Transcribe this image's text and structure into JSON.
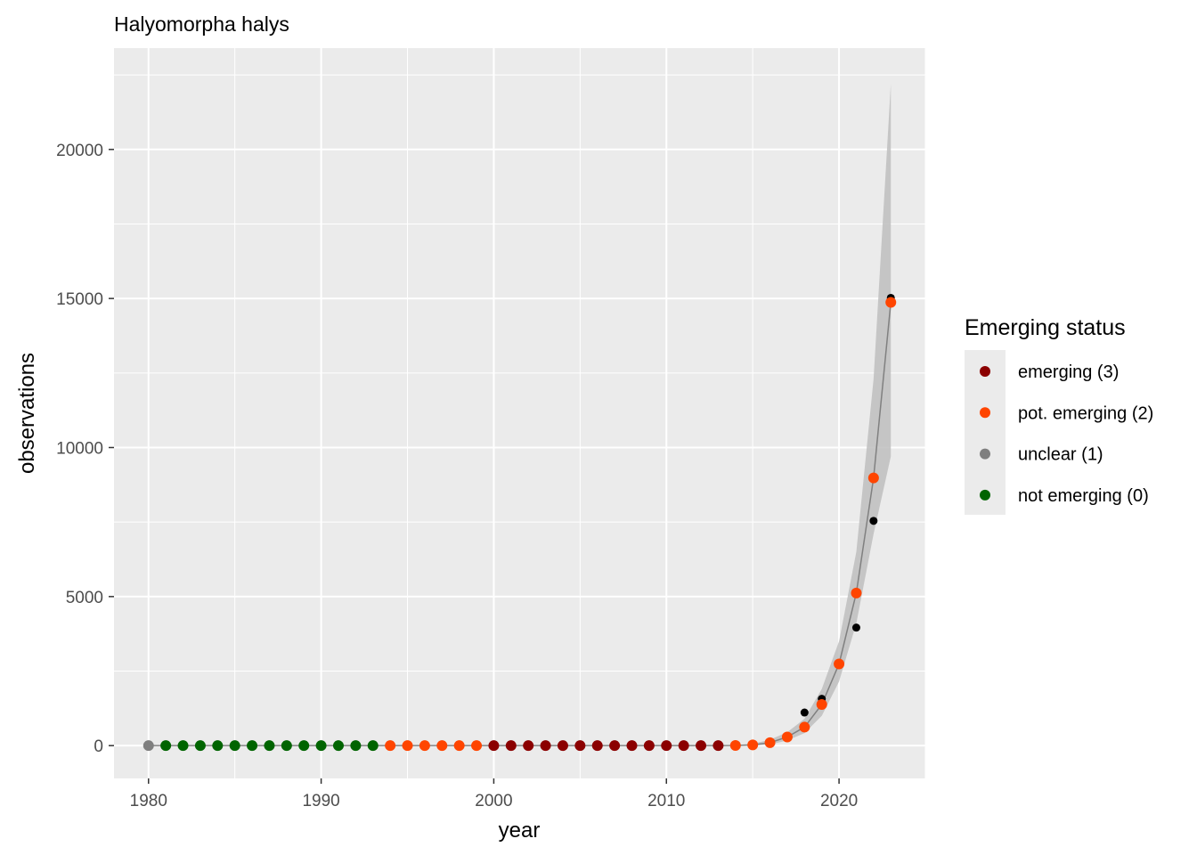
{
  "chart_data": {
    "type": "scatter",
    "title": "Halyomorpha halys",
    "xlabel": "year",
    "ylabel": "observations",
    "xlim": [
      1978,
      2025
    ],
    "ylim": [
      -1100,
      23400
    ],
    "x_ticks": [
      1980,
      1990,
      2000,
      2010,
      2020
    ],
    "y_ticks": [
      0,
      5000,
      10000,
      15000,
      20000
    ],
    "grid": true,
    "legend": {
      "title": "Emerging status",
      "position": "right",
      "entries": [
        {
          "label": "emerging (3)",
          "color": "#8b0000"
        },
        {
          "label": "pot. emerging (2)",
          "color": "#ff4500"
        },
        {
          "label": "unclear (1)",
          "color": "#7f7f7f"
        },
        {
          "label": "not emerging (0)",
          "color": "#006400"
        }
      ]
    },
    "observed": {
      "color": "#000000",
      "points": [
        [
          2018,
          1110
        ],
        [
          2019,
          1570
        ],
        [
          2021,
          3960
        ],
        [
          2022,
          7540
        ],
        [
          2023,
          15020
        ]
      ]
    },
    "fitted": {
      "line_color": "#808080",
      "band_color": "#bebebe",
      "points": [
        [
          1980,
          0,
          0,
          0,
          "unclear (1)"
        ],
        [
          1981,
          0,
          0,
          0,
          "not emerging (0)"
        ],
        [
          1982,
          0,
          0,
          0,
          "not emerging (0)"
        ],
        [
          1983,
          0,
          0,
          0,
          "not emerging (0)"
        ],
        [
          1984,
          0,
          0,
          0,
          "not emerging (0)"
        ],
        [
          1985,
          0,
          0,
          0,
          "not emerging (0)"
        ],
        [
          1986,
          0,
          0,
          0,
          "not emerging (0)"
        ],
        [
          1987,
          0,
          0,
          0,
          "not emerging (0)"
        ],
        [
          1988,
          0,
          0,
          0,
          "not emerging (0)"
        ],
        [
          1989,
          0,
          0,
          0,
          "not emerging (0)"
        ],
        [
          1990,
          0,
          0,
          0,
          "not emerging (0)"
        ],
        [
          1991,
          0,
          0,
          0,
          "not emerging (0)"
        ],
        [
          1992,
          0,
          0,
          0,
          "not emerging (0)"
        ],
        [
          1993,
          0,
          0,
          0,
          "not emerging (0)"
        ],
        [
          1994,
          0,
          0,
          0,
          "pot. emerging (2)"
        ],
        [
          1995,
          0,
          0,
          0,
          "pot. emerging (2)"
        ],
        [
          1996,
          0,
          0,
          0,
          "pot. emerging (2)"
        ],
        [
          1997,
          0,
          0,
          0,
          "pot. emerging (2)"
        ],
        [
          1998,
          0,
          0,
          0,
          "pot. emerging (2)"
        ],
        [
          1999,
          0,
          0,
          0,
          "pot. emerging (2)"
        ],
        [
          2000,
          0,
          0,
          0,
          "emerging (3)"
        ],
        [
          2001,
          0,
          0,
          0,
          "emerging (3)"
        ],
        [
          2002,
          0,
          0,
          0,
          "emerging (3)"
        ],
        [
          2003,
          0,
          0,
          0,
          "emerging (3)"
        ],
        [
          2004,
          0,
          0,
          0,
          "emerging (3)"
        ],
        [
          2005,
          0,
          0,
          0,
          "emerging (3)"
        ],
        [
          2006,
          0,
          0,
          0,
          "emerging (3)"
        ],
        [
          2007,
          0,
          0,
          0,
          "emerging (3)"
        ],
        [
          2008,
          0,
          0,
          0,
          "emerging (3)"
        ],
        [
          2009,
          0,
          0,
          0,
          "emerging (3)"
        ],
        [
          2010,
          0,
          0,
          0,
          "emerging (3)"
        ],
        [
          2011,
          0,
          0,
          0,
          "emerging (3)"
        ],
        [
          2012,
          0,
          0,
          0,
          "emerging (3)"
        ],
        [
          2013,
          0,
          0,
          0,
          "emerging (3)"
        ],
        [
          2014,
          5,
          0,
          20,
          "pot. emerging (2)"
        ],
        [
          2015,
          25,
          0,
          60,
          "pot. emerging (2)"
        ],
        [
          2016,
          100,
          40,
          200,
          "pot. emerging (2)"
        ],
        [
          2017,
          290,
          170,
          450,
          "pot. emerging (2)"
        ],
        [
          2018,
          620,
          420,
          900,
          "pot. emerging (2)"
        ],
        [
          2019,
          1380,
          1000,
          1900,
          "pot. emerging (2)"
        ],
        [
          2020,
          2740,
          2150,
          3500,
          "pot. emerging (2)"
        ],
        [
          2021,
          5120,
          4100,
          6500,
          "pot. emerging (2)"
        ],
        [
          2022,
          8980,
          7100,
          12300,
          "pot. emerging (2)"
        ],
        [
          2023,
          14870,
          9700,
          22200,
          "pot. emerging (2)"
        ]
      ]
    }
  }
}
